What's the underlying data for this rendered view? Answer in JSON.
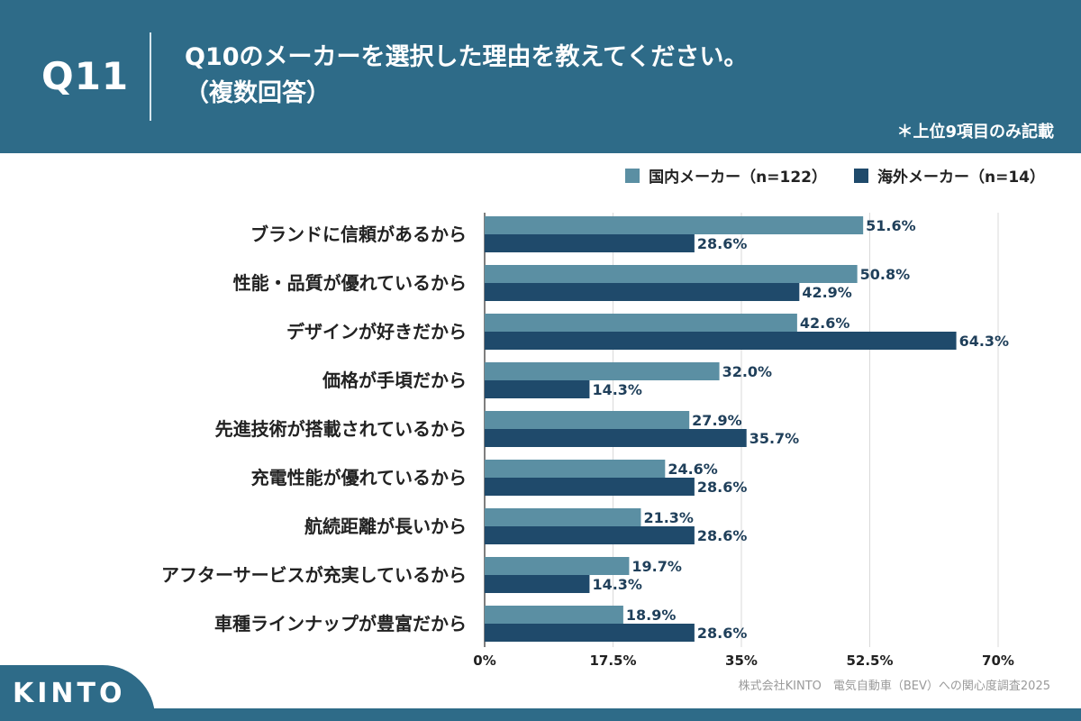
{
  "header": {
    "question_number": "Q11",
    "title_line1": "Q10のメーカーを選択した理由を教えてください。",
    "title_line2": "（複数回答）",
    "note": "＊上位9項目のみ記載"
  },
  "legend": {
    "domestic": "国内メーカー（n=122）",
    "overseas": "海外メーカー（n=14）"
  },
  "colors": {
    "background": "#2e6b88",
    "domestic": "#5b8fa3",
    "overseas": "#1f4a6b",
    "grid": "#d9d9d9"
  },
  "chart_data": {
    "type": "bar",
    "orientation": "horizontal",
    "categories": [
      "ブランドに信頼があるから",
      "性能・品質が優れているから",
      "デザインが好きだから",
      "価格が手頃だから",
      "先進技術が搭載されているから",
      "充電性能が優れているから",
      "航続距離が長いから",
      "アフターサービスが充実しているから",
      "車種ラインナップが豊富だから"
    ],
    "series": [
      {
        "name": "国内メーカー（n=122）",
        "values": [
          51.6,
          50.8,
          42.6,
          32.0,
          27.9,
          24.6,
          21.3,
          19.7,
          18.9
        ]
      },
      {
        "name": "海外メーカー（n=14）",
        "values": [
          28.6,
          42.9,
          64.3,
          14.3,
          35.7,
          28.6,
          28.6,
          14.3,
          28.6
        ]
      }
    ],
    "xlim": [
      0,
      70
    ],
    "xticks": [
      0,
      17.5,
      35,
      52.5,
      70
    ],
    "xtick_labels": [
      "0%",
      "17.5%",
      "35%",
      "52.5%",
      "70%"
    ],
    "value_suffix": "%",
    "grid": true,
    "legend_position": "top-right"
  },
  "footer": {
    "logo": "KINTO",
    "source": "株式会社KINTO　電気自動車（BEV）への関心度調査2025"
  }
}
